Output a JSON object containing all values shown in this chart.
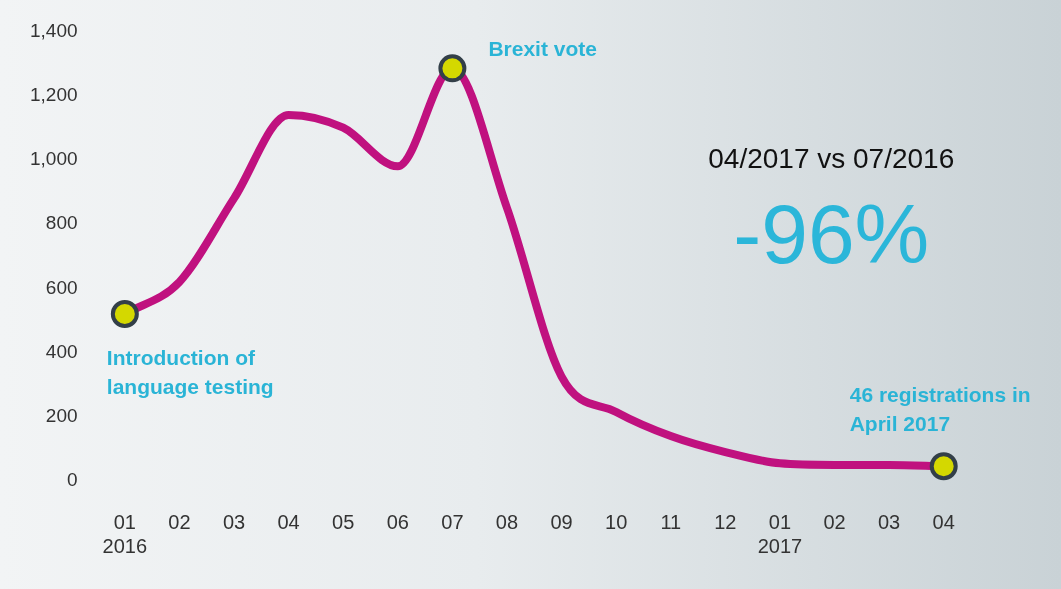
{
  "chart_data": {
    "type": "line",
    "categories": [
      "01\n2016",
      "02",
      "03",
      "04",
      "05",
      "06",
      "07",
      "08",
      "09",
      "10",
      "11",
      "12",
      "01\n2017",
      "02",
      "03",
      "04"
    ],
    "series": [
      {
        "type": "line",
        "color": "#c0117f",
        "marker": "none",
        "values": [
          520,
          620,
          880,
          1140,
          1100,
          980,
          1285,
          850,
          325,
          215,
          140,
          90,
          55,
          50,
          50,
          46
        ]
      },
      {
        "type": "scatter",
        "color": "#d4d800",
        "marker": "circle",
        "values": [
          520,
          null,
          null,
          null,
          null,
          null,
          1285,
          null,
          null,
          null,
          null,
          null,
          null,
          null,
          null,
          46
        ]
      }
    ],
    "ylim": [
      0,
      1400
    ],
    "yticks": [
      0,
      200,
      400,
      600,
      800,
      {
        "value": 1000,
        "label": "1,000"
      },
      {
        "value": 1200,
        "label": "1,200"
      },
      {
        "value": 1400,
        "label": "1,400"
      }
    ],
    "grid": false,
    "legend": false,
    "annotations": [
      "Introduction of language testing",
      "Brexit vote",
      "46 registrations in April 2017",
      "04/2017 vs 07/2016",
      "-96%"
    ]
  }
}
